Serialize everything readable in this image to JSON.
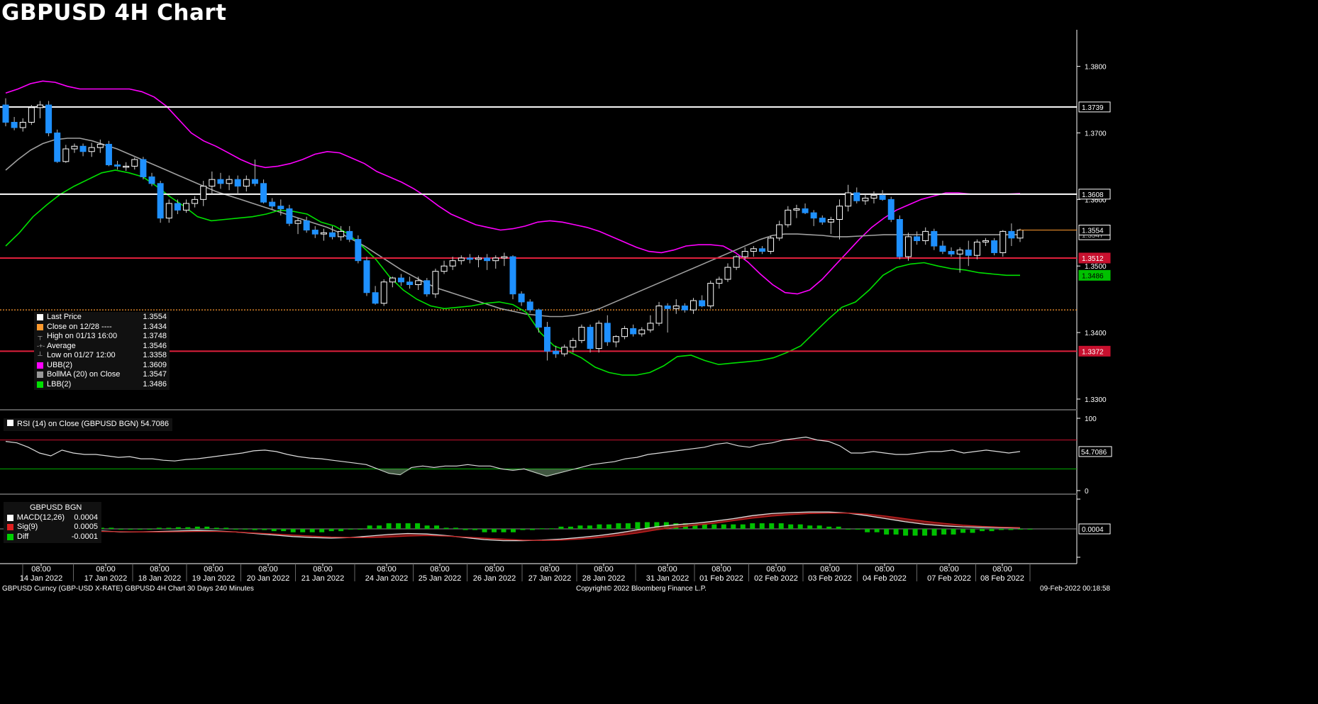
{
  "title": "GBPUSD 4H Chart",
  "colors": {
    "up": "#ffffff",
    "down": "#1e90ff",
    "ubb": "#ff00ff",
    "lbb": "#00e000",
    "bollma": "#a0a0a0",
    "hline_white": "#ffffff",
    "hline_red": "#e0203c",
    "last_line": "#ff9a2e"
  },
  "main_legend": [
    {
      "label": "Last Price",
      "value": "1.3554",
      "icon": "white-square"
    },
    {
      "label": "Close on 12/28 ----",
      "value": "1.3434",
      "icon": "orange-square"
    },
    {
      "label": "High on 01/13 16:00",
      "value": "1.3748",
      "icon": "high-marker"
    },
    {
      "label": "Average",
      "value": "1.3546",
      "icon": "average-marker"
    },
    {
      "label": "Low on 01/27 12:00",
      "value": "1.3358",
      "icon": "low-marker"
    },
    {
      "label": "UBB(2)",
      "value": "1.3609",
      "icon": "magenta-square"
    },
    {
      "label": "BollMA (20)  on Close",
      "value": "1.3547",
      "icon": "gray-square"
    },
    {
      "label": "LBB(2)",
      "value": "1.3486",
      "icon": "green-square"
    }
  ],
  "rsi_legend": "RSI (14)  on Close (GBPUSD BGN) 54.7086",
  "macd_legend": {
    "header": "GBPUSD BGN",
    "rows": [
      {
        "label": "MACD(12,26)",
        "value": "0.0004"
      },
      {
        "label": "Sig(9)",
        "value": "0.0005"
      },
      {
        "label": "Diff",
        "value": "-0.0001"
      }
    ]
  },
  "footer": {
    "left": "GBPUSD Curncy (GBP-USD X-RATE) GBPUSD 4H Chart 30 Days 240 Minutes",
    "center": "Copyright© 2022 Bloomberg Finance L.P.",
    "right": "09-Feb-2022 00:18:58"
  },
  "chart_data": {
    "type": "candlestick",
    "ylim": [
      1.3285,
      1.3855
    ],
    "y_ticks": [
      "1.3800",
      "1.3700",
      "1.3600",
      "1.3500",
      "1.3400",
      "1.3300"
    ],
    "x_ticks": [
      {
        "time": "08:00",
        "date": "14 Jan 2022"
      },
      {
        "time": "08:00",
        "date": "17 Jan 2022"
      },
      {
        "time": "08:00",
        "date": "18 Jan 2022"
      },
      {
        "time": "08:00",
        "date": "19 Jan 2022"
      },
      {
        "time": "08:00",
        "date": "20 Jan 2022"
      },
      {
        "time": "08:00",
        "date": "21 Jan 2022"
      },
      {
        "time": "08:00",
        "date": "24 Jan 2022"
      },
      {
        "time": "08:00",
        "date": "25 Jan 2022"
      },
      {
        "time": "08:00",
        "date": "26 Jan 2022"
      },
      {
        "time": "08:00",
        "date": "27 Jan 2022"
      },
      {
        "time": "08:00",
        "date": "28 Jan 2022"
      },
      {
        "time": "08:00",
        "date": "31 Jan 2022"
      },
      {
        "time": "08:00",
        "date": "01 Feb 2022"
      },
      {
        "time": "08:00",
        "date": "02 Feb 2022"
      },
      {
        "time": "08:00",
        "date": "03 Feb 2022"
      },
      {
        "time": "08:00",
        "date": "04 Feb 2022"
      },
      {
        "time": "08:00",
        "date": "07 Feb 2022"
      },
      {
        "time": "08:00",
        "date": "08 Feb 2022"
      }
    ],
    "candles": [
      [
        1.3742,
        1.3752,
        1.371,
        1.3716
      ],
      [
        1.3716,
        1.3724,
        1.3704,
        1.3708
      ],
      [
        1.3708,
        1.3722,
        1.3702,
        1.3716
      ],
      [
        1.3716,
        1.3742,
        1.3712,
        1.3738
      ],
      [
        1.3738,
        1.3748,
        1.3722,
        1.3742
      ],
      [
        1.3742,
        1.3748,
        1.3695,
        1.37
      ],
      [
        1.37,
        1.3705,
        1.3655,
        1.3657
      ],
      [
        1.3657,
        1.3682,
        1.3655,
        1.3676
      ],
      [
        1.3676,
        1.3684,
        1.367,
        1.368
      ],
      [
        1.368,
        1.3684,
        1.3665,
        1.3672
      ],
      [
        1.3672,
        1.3685,
        1.3664,
        1.3678
      ],
      [
        1.3678,
        1.369,
        1.367,
        1.3683
      ],
      [
        1.3683,
        1.3688,
        1.365,
        1.3652
      ],
      [
        1.3652,
        1.3658,
        1.3645,
        1.365
      ],
      [
        1.365,
        1.3656,
        1.3643,
        1.365
      ],
      [
        1.365,
        1.3663,
        1.3645,
        1.366
      ],
      [
        1.366,
        1.3664,
        1.363,
        1.3634
      ],
      [
        1.3634,
        1.364,
        1.362,
        1.3624
      ],
      [
        1.3624,
        1.3628,
        1.3565,
        1.3572
      ],
      [
        1.3572,
        1.36,
        1.3565,
        1.3594
      ],
      [
        1.3594,
        1.36,
        1.3578,
        1.3584
      ],
      [
        1.3584,
        1.36,
        1.358,
        1.3594
      ],
      [
        1.3594,
        1.3605,
        1.3588,
        1.36
      ],
      [
        1.36,
        1.3628,
        1.359,
        1.362
      ],
      [
        1.362,
        1.3642,
        1.3608,
        1.363
      ],
      [
        1.363,
        1.364,
        1.3616,
        1.3624
      ],
      [
        1.3624,
        1.3636,
        1.3614,
        1.363
      ],
      [
        1.363,
        1.3636,
        1.3608,
        1.362
      ],
      [
        1.362,
        1.3636,
        1.3612,
        1.363
      ],
      [
        1.363,
        1.366,
        1.362,
        1.3624
      ],
      [
        1.3624,
        1.363,
        1.3594,
        1.3596
      ],
      [
        1.3596,
        1.3602,
        1.3585,
        1.359
      ],
      [
        1.359,
        1.36,
        1.3576,
        1.3586
      ],
      [
        1.3586,
        1.3592,
        1.356,
        1.3564
      ],
      [
        1.3564,
        1.3572,
        1.3548,
        1.3568
      ],
      [
        1.3568,
        1.3574,
        1.355,
        1.3554
      ],
      [
        1.3554,
        1.356,
        1.3542,
        1.3548
      ],
      [
        1.3548,
        1.3556,
        1.3538,
        1.355
      ],
      [
        1.355,
        1.356,
        1.354,
        1.3544
      ],
      [
        1.3544,
        1.356,
        1.3538,
        1.3552
      ],
      [
        1.3552,
        1.356,
        1.3536,
        1.354
      ],
      [
        1.354,
        1.3546,
        1.3504,
        1.3508
      ],
      [
        1.3508,
        1.3514,
        1.3455,
        1.346
      ],
      [
        1.346,
        1.347,
        1.3442,
        1.3444
      ],
      [
        1.3444,
        1.348,
        1.344,
        1.3476
      ],
      [
        1.3476,
        1.3484,
        1.3468,
        1.3482
      ],
      [
        1.3482,
        1.3488,
        1.347,
        1.3476
      ],
      [
        1.3476,
        1.3484,
        1.3466,
        1.3472
      ],
      [
        1.3472,
        1.3484,
        1.3464,
        1.3478
      ],
      [
        1.3478,
        1.3482,
        1.3454,
        1.3458
      ],
      [
        1.3458,
        1.3496,
        1.3452,
        1.3492
      ],
      [
        1.3492,
        1.3508,
        1.3488,
        1.35
      ],
      [
        1.35,
        1.3514,
        1.3494,
        1.3508
      ],
      [
        1.3508,
        1.3516,
        1.3502,
        1.3512
      ],
      [
        1.3512,
        1.3518,
        1.3504,
        1.351
      ],
      [
        1.351,
        1.3516,
        1.3498,
        1.3512
      ],
      [
        1.3512,
        1.3518,
        1.3494,
        1.3508
      ],
      [
        1.3508,
        1.3516,
        1.3496,
        1.3512
      ],
      [
        1.3512,
        1.352,
        1.35,
        1.3514
      ],
      [
        1.3514,
        1.3516,
        1.345,
        1.3458
      ],
      [
        1.3458,
        1.3462,
        1.344,
        1.3446
      ],
      [
        1.3446,
        1.345,
        1.343,
        1.3434
      ],
      [
        1.3434,
        1.3436,
        1.34,
        1.3408
      ],
      [
        1.3408,
        1.3416,
        1.3358,
        1.3372
      ],
      [
        1.3372,
        1.338,
        1.3362,
        1.3368
      ],
      [
        1.3368,
        1.3382,
        1.3364,
        1.3378
      ],
      [
        1.3378,
        1.3392,
        1.337,
        1.3388
      ],
      [
        1.3388,
        1.3412,
        1.3384,
        1.3408
      ],
      [
        1.3408,
        1.3412,
        1.337,
        1.3376
      ],
      [
        1.3376,
        1.3418,
        1.337,
        1.3414
      ],
      [
        1.3414,
        1.3426,
        1.338,
        1.3386
      ],
      [
        1.3386,
        1.3396,
        1.3378,
        1.3394
      ],
      [
        1.3394,
        1.341,
        1.339,
        1.3406
      ],
      [
        1.3406,
        1.3412,
        1.3394,
        1.3398
      ],
      [
        1.3398,
        1.3408,
        1.3394,
        1.3404
      ],
      [
        1.3404,
        1.3426,
        1.34,
        1.3414
      ],
      [
        1.3414,
        1.3446,
        1.341,
        1.344
      ],
      [
        1.344,
        1.3444,
        1.34,
        1.3436
      ],
      [
        1.3436,
        1.345,
        1.3428,
        1.344
      ],
      [
        1.344,
        1.3444,
        1.343,
        1.3434
      ],
      [
        1.3434,
        1.3452,
        1.3428,
        1.3448
      ],
      [
        1.3448,
        1.3456,
        1.3438,
        1.344
      ],
      [
        1.344,
        1.3478,
        1.3436,
        1.3474
      ],
      [
        1.3474,
        1.3484,
        1.3466,
        1.348
      ],
      [
        1.348,
        1.3504,
        1.3476,
        1.3498
      ],
      [
        1.3498,
        1.3516,
        1.3494,
        1.3514
      ],
      [
        1.3514,
        1.3528,
        1.351,
        1.3522
      ],
      [
        1.3522,
        1.353,
        1.3514,
        1.3526
      ],
      [
        1.3526,
        1.353,
        1.3518,
        1.3522
      ],
      [
        1.3522,
        1.3546,
        1.3518,
        1.3542
      ],
      [
        1.3542,
        1.3568,
        1.3538,
        1.3562
      ],
      [
        1.3562,
        1.359,
        1.3558,
        1.3584
      ],
      [
        1.3584,
        1.3592,
        1.3572,
        1.3586
      ],
      [
        1.3586,
        1.3594,
        1.3578,
        1.358
      ],
      [
        1.358,
        1.3584,
        1.356,
        1.3572
      ],
      [
        1.3572,
        1.3576,
        1.3562,
        1.3566
      ],
      [
        1.3566,
        1.3574,
        1.3548,
        1.357
      ],
      [
        1.357,
        1.36,
        1.354,
        1.359
      ],
      [
        1.359,
        1.3622,
        1.3582,
        1.361
      ],
      [
        1.361,
        1.3618,
        1.3594,
        1.3598
      ],
      [
        1.3598,
        1.3608,
        1.3592,
        1.3602
      ],
      [
        1.3602,
        1.3612,
        1.3594,
        1.3606
      ],
      [
        1.3606,
        1.3614,
        1.3598,
        1.36
      ],
      [
        1.36,
        1.3604,
        1.3566,
        1.357
      ],
      [
        1.357,
        1.3576,
        1.351,
        1.3514
      ],
      [
        1.3514,
        1.355,
        1.3508,
        1.3544
      ],
      [
        1.3544,
        1.3552,
        1.3532,
        1.3538
      ],
      [
        1.3538,
        1.3558,
        1.3532,
        1.3552
      ],
      [
        1.3552,
        1.3556,
        1.3524,
        1.353
      ],
      [
        1.353,
        1.3538,
        1.3518,
        1.3522
      ],
      [
        1.3522,
        1.3528,
        1.3514,
        1.3518
      ],
      [
        1.3518,
        1.3528,
        1.349,
        1.3524
      ],
      [
        1.3524,
        1.3538,
        1.35,
        1.3516
      ],
      [
        1.3516,
        1.354,
        1.351,
        1.3536
      ],
      [
        1.3536,
        1.3542,
        1.353,
        1.3538
      ],
      [
        1.3538,
        1.3542,
        1.3516,
        1.352
      ],
      [
        1.352,
        1.3554,
        1.3514,
        1.3552
      ],
      [
        1.3552,
        1.3564,
        1.353,
        1.3542
      ],
      [
        1.3542,
        1.3556,
        1.3536,
        1.3554
      ]
    ],
    "ubb": [
      1.376,
      1.3766,
      1.3774,
      1.3778,
      1.3776,
      1.377,
      1.3766,
      1.3766,
      1.3766,
      1.3766,
      1.3766,
      1.3762,
      1.3754,
      1.374,
      1.372,
      1.37,
      1.3688,
      1.368,
      1.367,
      1.366,
      1.3652,
      1.3648,
      1.365,
      1.3654,
      1.366,
      1.3668,
      1.3672,
      1.367,
      1.3662,
      1.3654,
      1.3642,
      1.3634,
      1.3626,
      1.3616,
      1.3604,
      1.359,
      1.3578,
      1.357,
      1.3562,
      1.3558,
      1.3554,
      1.3556,
      1.356,
      1.3566,
      1.3568,
      1.3566,
      1.3562,
      1.3558,
      1.3552,
      1.3544,
      1.3536,
      1.3528,
      1.3522,
      1.352,
      1.3524,
      1.353,
      1.3532,
      1.3532,
      1.353,
      1.352,
      1.3506,
      1.3488,
      1.3472,
      1.346,
      1.3458,
      1.3464,
      1.348,
      1.35,
      1.352,
      1.354,
      1.3558,
      1.3572,
      1.3584,
      1.3592,
      1.36,
      1.3605,
      1.361,
      1.361,
      1.3608,
      1.3608,
      1.3608,
      1.3608,
      1.3609
    ],
    "bollma": [
      1.3644,
      1.366,
      1.3674,
      1.3684,
      1.369,
      1.3692,
      1.3692,
      1.3688,
      1.3682,
      1.3676,
      1.3668,
      1.366,
      1.3652,
      1.3644,
      1.3636,
      1.3628,
      1.362,
      1.3612,
      1.3606,
      1.36,
      1.3594,
      1.3588,
      1.3582,
      1.3576,
      1.357,
      1.3564,
      1.3558,
      1.355,
      1.354,
      1.353,
      1.3518,
      1.3506,
      1.3494,
      1.3484,
      1.3474,
      1.3466,
      1.346,
      1.3454,
      1.3448,
      1.3442,
      1.3436,
      1.3432,
      1.3428,
      1.3426,
      1.3424,
      1.3424,
      1.3426,
      1.343,
      1.3436,
      1.3444,
      1.3452,
      1.346,
      1.3468,
      1.3476,
      1.3484,
      1.3492,
      1.35,
      1.3508,
      1.3516,
      1.3524,
      1.3532,
      1.354,
      1.3546,
      1.3548,
      1.3548,
      1.3547,
      1.3546,
      1.3544,
      1.3544,
      1.3545,
      1.3546,
      1.3547,
      1.3547,
      1.3547,
      1.3547,
      1.3547,
      1.3547,
      1.3547,
      1.3547,
      1.3547,
      1.3547,
      1.3547,
      1.3547
    ],
    "lbb": [
      1.353,
      1.355,
      1.3574,
      1.3592,
      1.3608,
      1.362,
      1.363,
      1.364,
      1.3644,
      1.364,
      1.3634,
      1.362,
      1.3604,
      1.359,
      1.3574,
      1.3568,
      1.357,
      1.3572,
      1.3574,
      1.3578,
      1.3584,
      1.3582,
      1.3578,
      1.3566,
      1.356,
      1.3548,
      1.353,
      1.351,
      1.3484,
      1.3464,
      1.345,
      1.344,
      1.3436,
      1.3438,
      1.344,
      1.3444,
      1.3446,
      1.3442,
      1.343,
      1.34,
      1.338,
      1.3372,
      1.3362,
      1.3348,
      1.334,
      1.3336,
      1.3336,
      1.334,
      1.335,
      1.3364,
      1.3366,
      1.3358,
      1.3352,
      1.3354,
      1.3356,
      1.3358,
      1.3362,
      1.337,
      1.338,
      1.34,
      1.342,
      1.3438,
      1.3446,
      1.3464,
      1.3486,
      1.3498,
      1.3503,
      1.3505,
      1.35,
      1.3496,
      1.3494,
      1.349,
      1.3488,
      1.3486,
      1.3486
    ],
    "hlines": [
      {
        "value": 1.3739,
        "label": "1.3739",
        "color": "white"
      },
      {
        "value": 1.3608,
        "label": "1.3608",
        "color": "white"
      },
      {
        "value": 1.3512,
        "label": "1.3512",
        "color": "red"
      },
      {
        "value": 1.3372,
        "label": "1.3372",
        "color": "red"
      }
    ],
    "close_ref": {
      "value": 1.3434
    },
    "last_price": {
      "value": 1.3554,
      "label": "1.3554"
    },
    "lbb_label": "1.3486",
    "hidden_labels": [
      "1.3547"
    ],
    "rsi": {
      "levels": [
        70,
        30
      ],
      "ticks": [
        "100",
        "0"
      ],
      "label": "54.7086",
      "values": [
        68,
        66,
        60,
        52,
        48,
        56,
        52,
        50,
        50,
        48,
        46,
        47,
        44,
        44,
        42,
        41,
        43,
        44,
        46,
        48,
        50,
        52,
        55,
        56,
        54,
        50,
        47,
        45,
        44,
        42,
        40,
        38,
        36,
        30,
        24,
        22,
        32,
        34,
        32,
        34,
        34,
        36,
        34,
        34,
        30,
        28,
        30,
        25,
        20,
        24,
        28,
        32,
        36,
        38,
        40,
        44,
        46,
        50,
        52,
        54,
        56,
        58,
        60,
        64,
        66,
        62,
        60,
        64,
        66,
        70,
        72,
        74,
        70,
        68,
        62,
        52,
        52,
        54,
        52,
        50,
        50,
        52,
        54,
        54,
        56,
        52,
        54,
        56,
        54,
        52,
        54
      ]
    },
    "macd": {
      "label": "0.0004",
      "macd": [
        0.003,
        0.0026,
        0.002,
        0.001,
        0.0,
        -0.0008,
        -0.0012,
        -0.0012,
        -0.001,
        -0.0008,
        -0.0006,
        -0.0008,
        -0.0012,
        -0.0018,
        -0.0024,
        -0.003,
        -0.0034,
        -0.0036,
        -0.0034,
        -0.0028,
        -0.0022,
        -0.0018,
        -0.002,
        -0.0026,
        -0.0034,
        -0.0042,
        -0.0046,
        -0.0046,
        -0.0044,
        -0.004,
        -0.0034,
        -0.0026,
        -0.0016,
        -0.0004,
        0.0008,
        0.0016,
        0.0022,
        0.003,
        0.004,
        0.0052,
        0.006,
        0.0064,
        0.0066,
        0.0066,
        0.0062,
        0.0052,
        0.004,
        0.0028,
        0.0018,
        0.0012,
        0.0008,
        0.0006,
        0.0005,
        0.0004
      ],
      "signal": [
        0.0012,
        0.0008,
        0.0002,
        -0.0004,
        -0.0008,
        -0.001,
        -0.0011,
        -0.0012,
        -0.0012,
        -0.0011,
        -0.001,
        -0.001,
        -0.0012,
        -0.0016,
        -0.002,
        -0.0024,
        -0.0028,
        -0.0032,
        -0.0034,
        -0.0034,
        -0.0032,
        -0.0028,
        -0.0026,
        -0.0028,
        -0.0032,
        -0.0036,
        -0.004,
        -0.0044,
        -0.0045,
        -0.0044,
        -0.004,
        -0.0034,
        -0.0026,
        -0.0016,
        -0.0004,
        0.0006,
        0.0014,
        0.0022,
        0.0032,
        0.0042,
        0.005,
        0.0056,
        0.006,
        0.0062,
        0.0062,
        0.0058,
        0.005,
        0.004,
        0.003,
        0.0022,
        0.0015,
        0.001,
        0.0007,
        0.0005
      ]
    }
  }
}
